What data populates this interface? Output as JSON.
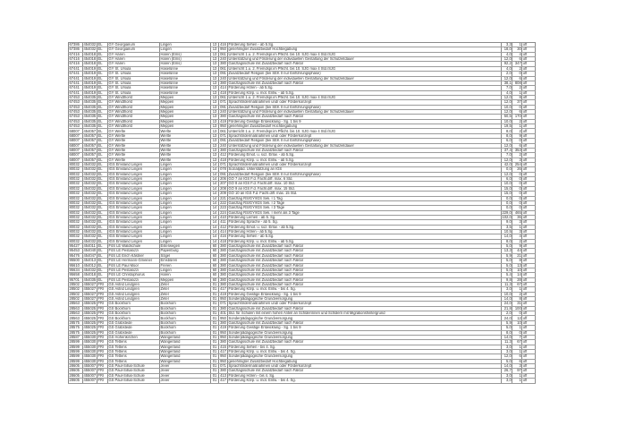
{
  "table": {
    "rows": [
      [
        "67386",
        "454032",
        "EL",
        "GY Georgianum",
        "Lingen",
        "13",
        "416",
        "Förderung Sehen - ab 5.Sg.",
        "3,3",
        "1",
        "off"
      ],
      [
        "67386",
        "454032",
        "EL",
        "GY Georgianum",
        "Lingen",
        "13",
        "950",
        "genehmigter Zusatzbedarf Hochbegabung",
        "18,0",
        "30",
        "off"
      ],
      [
        "67416",
        "454018",
        "EL",
        "GY Haren",
        "Haren (Ems)",
        "13",
        "061",
        "Unterricht 1.u. 2. Fremdspr.im Pflicht. bis 10. SJG max 4 Std./SJG",
        "4,0",
        "4",
        "off"
      ],
      [
        "67416",
        "454018",
        "EL",
        "GY Haren",
        "Haren (Ems)",
        "13",
        "240",
        "Unterstützung und Förderung der individuellen Gestaltung der Schulzeitdauer",
        "12,0",
        "6",
        "off"
      ],
      [
        "67416",
        "454018",
        "EL",
        "GY Haren",
        "Haren (Ems)",
        "13",
        "380",
        "Ganztagsschule mit Zusatzbedarf nach Faktor",
        "92,2",
        "347",
        "off"
      ],
      [
        "67441",
        "454019",
        "EL",
        "GY St. Ursula",
        "Haselünne",
        "13",
        "061",
        "Unterricht 1.u. 2. Fremdspr.im Pflicht. bis 10. SJG max 4 Std./SJG",
        "4,0",
        "2",
        "off"
      ],
      [
        "67441",
        "454019",
        "EL",
        "GY St. Ursula",
        "Haselünne",
        "13",
        "091",
        "Zusatzbedarf Religion (bei SEK II nur Einführungsphase)",
        "2,0",
        "0",
        "off"
      ],
      [
        "67441",
        "454019",
        "EL",
        "GY St. Ursula",
        "Haselünne",
        "13",
        "240",
        "Unterstützung und Förderung der individuellen Gestaltung der Schulzeitdauer",
        "12,0",
        "6",
        "off"
      ],
      [
        "67441",
        "454019",
        "EL",
        "GY St. Ursula",
        "Haselünne",
        "13",
        "380",
        "Ganztagsschule mit Zusatzbedarf nach Faktor",
        "38,1",
        "808",
        "off"
      ],
      [
        "67441",
        "454019",
        "EL",
        "GY St. Ursula",
        "Haselünne",
        "13",
        "414",
        "Förderung Hören - ab 5.Sg.",
        "7,0",
        "2",
        "off"
      ],
      [
        "67441",
        "454019",
        "EL",
        "GY St. Ursula",
        "Haselünne",
        "13",
        "418",
        "Förderung Körp. u. mot. Entw. - ab 5.Sg.",
        "4,0",
        "1",
        "off"
      ],
      [
        "67453",
        "454035",
        "EL",
        "GY Windthorst",
        "Meppen",
        "13",
        "061",
        "Unterricht 1.u. 2. Fremdspr.im Pflicht. bis 10. SJG max 4 Std./SJG",
        "12,0",
        "8",
        "off"
      ],
      [
        "67453",
        "454035",
        "EL",
        "GY Windthorst",
        "Meppen",
        "13",
        "071",
        "Sprachfördermaßnahmen und/ oder Förderkonzept",
        "12,0",
        "37",
        "off"
      ],
      [
        "67453",
        "454035",
        "EL",
        "GY Windthorst",
        "Meppen",
        "13",
        "091",
        "Zusatzbedarf Religion (bei SEK II nur Einführungsphase)",
        "10,0",
        "0",
        "off"
      ],
      [
        "67453",
        "454035",
        "EL",
        "GY Windthorst",
        "Meppen",
        "13",
        "240",
        "Unterstützung und Förderung der individuellen Gestaltung der Schulzeitdauer",
        "12,0",
        "6",
        "off"
      ],
      [
        "67453",
        "454035",
        "EL",
        "GY Windthorst",
        "Meppen",
        "13",
        "380",
        "Ganztagsschule mit Zusatzbedarf nach Faktor",
        "50,5",
        "170",
        "off"
      ],
      [
        "67453",
        "454035",
        "EL",
        "GY Windthorst",
        "Meppen",
        "13",
        "419",
        "Förderung Geistige Entwicklung - Sg. 1 bis 9",
        "10,0",
        "2",
        "off"
      ],
      [
        "67453",
        "454035",
        "EL",
        "GY Windthorst",
        "Meppen",
        "13",
        "950",
        "genehmigter Zusatzbedarf Hochbegabung",
        "19,5",
        "1",
        "off"
      ],
      [
        "68007",
        "454057",
        "EL",
        "GY Werlte",
        "Werlte",
        "13",
        "061",
        "Unterricht 1.u. 2. Fremdspr.im Pflicht. bis 10. SJG max 4 Std./SJG",
        "8,0",
        "2",
        "off"
      ],
      [
        "68007",
        "454057",
        "EL",
        "GY Werlte",
        "Werlte",
        "13",
        "071",
        "Sprachfördermaßnahmen und/ oder Förderkonzept",
        "8,0",
        "9",
        "off"
      ],
      [
        "68007",
        "454057",
        "EL",
        "GY Werlte",
        "Werlte",
        "13",
        "091",
        "Zusatzbedarf Religion (bei SEK II nur Einführungsphase)",
        "6,0",
        "0",
        "off"
      ],
      [
        "68007",
        "454057",
        "EL",
        "GY Werlte",
        "Werlte",
        "13",
        "240",
        "Unterstützung und Förderung der individuellen Gestaltung der Schulzeitdauer",
        "12,0",
        "6",
        "off"
      ],
      [
        "68007",
        "454057",
        "EL",
        "GY Werlte",
        "Werlte",
        "13",
        "380",
        "Ganztagsschule mit Zusatzbedarf nach Faktor",
        "37,4",
        "353",
        "off"
      ],
      [
        "68007",
        "454057",
        "EL",
        "GY Werlte",
        "Werlte",
        "13",
        "412",
        "Förderung Emot. u. soz. Entw. - ab 5.Sg.",
        "7,0",
        "2",
        "off"
      ],
      [
        "68007",
        "454057",
        "EL",
        "GY Werlte",
        "Werlte",
        "13",
        "418",
        "Förderung Körp. u. mot. Entw. - ab 5.Sg.",
        "12,0",
        "3",
        "off"
      ],
      [
        "80032",
        "454032",
        "EL",
        "IGS Emsland Lingen",
        "Lingen",
        "14",
        "071",
        "Sprachfördermaßnahmen und/ oder Förderkonzept",
        "42,0",
        "254",
        "off"
      ],
      [
        "80032",
        "454032",
        "EL",
        "IGS Emsland Lingen",
        "Lingen",
        "14",
        "078",
        "Sozialpäd. Unterstützung an IGS",
        "0,0",
        "26",
        "off"
      ],
      [
        "80032",
        "454032",
        "EL",
        "IGS Emsland Lingen",
        "Lingen",
        "14",
        "091",
        "Zusatzbedarf Religion (bei SEK II nur Einführungsphase)",
        "12,0",
        "0",
        "off"
      ],
      [
        "80032",
        "454032",
        "EL",
        "IGS Emsland Lingen",
        "Lingen",
        "14",
        "206",
        "GO 7 an IGS F.d. Fachl.diff. max. 6 Std.",
        "6,0",
        "0",
        "off"
      ],
      [
        "80032",
        "454032",
        "EL",
        "IGS Emsland Lingen",
        "Lingen",
        "14",
        "207",
        "GO 8 an IGS F.d. Fachl.diff. max. 10 Std.",
        "10,0",
        "0",
        "off"
      ],
      [
        "80032",
        "454032",
        "EL",
        "IGS Emsland Lingen",
        "Lingen",
        "14",
        "208",
        "GO 9 an IGS F.d. Fachl.diff. max. 15 Std.",
        "15,0",
        "0",
        "off"
      ],
      [
        "80032",
        "454032",
        "EL",
        "IGS Emsland Lingen",
        "Lingen",
        "14",
        "209",
        "GO 10 an IGS F.d. Fachl.diff. max. 15 Std.",
        "15,0",
        "0",
        "off"
      ],
      [
        "80032",
        "454032",
        "EL",
        "IGS Emsland Lingen",
        "Lingen",
        "14",
        "221",
        "Ganztag RS/GY/IGS Sek. I 1 Tag",
        "0,0",
        "0",
        "off"
      ],
      [
        "80032",
        "454032",
        "EL",
        "IGS Emsland Lingen",
        "Lingen",
        "14",
        "222",
        "Ganztag RS/GY/IGS Sek. I 2 Tage",
        "0,0",
        "0",
        "off"
      ],
      [
        "80032",
        "454032",
        "EL",
        "IGS Emsland Lingen",
        "Lingen",
        "14",
        "223",
        "Ganztag RS/GY/IGS Sek. I 3 Tage",
        "0,0",
        "0",
        "off"
      ],
      [
        "80032",
        "454032",
        "EL",
        "IGS Emsland Lingen",
        "Lingen",
        "14",
        "224",
        "Ganztag RS/GY/IGS Sek. I mehr als 3 Tage",
        "229,0",
        "465",
        "off"
      ],
      [
        "80032",
        "454032",
        "EL",
        "IGS Emsland Lingen",
        "Lingen",
        "14",
        "410",
        "Förderung Lernen - ab 5. Sg.",
        "102,0",
        "36",
        "off"
      ],
      [
        "80032",
        "454032",
        "EL",
        "IGS Emsland Lingen",
        "Lingen",
        "14",
        "411",
        "Förderung Sprache - ab 5. Sg.",
        "9,0",
        "3",
        "off"
      ],
      [
        "80032",
        "454032",
        "EL",
        "IGS Emsland Lingen",
        "Lingen",
        "14",
        "412",
        "Förderung Emot. u. soz. Entw. - ab 5.Sg.",
        "3,5",
        "1",
        "off"
      ],
      [
        "80032",
        "454032",
        "EL",
        "IGS Emsland Lingen",
        "Lingen",
        "14",
        "414",
        "Förderung Hören - ab 5.Sg.",
        "10,5",
        "3",
        "off"
      ],
      [
        "80032",
        "454032",
        "EL",
        "IGS Emsland Lingen",
        "Lingen",
        "14",
        "416",
        "Förderung Sehen - ab 5.Sg.",
        "14,0",
        "4",
        "off"
      ],
      [
        "80032",
        "454032",
        "EL",
        "IGS Emsland Lingen",
        "Lingen",
        "14",
        "418",
        "Förderung Körp. u. mot. Entw. - ab 5.Sg.",
        "8,0",
        "2",
        "off"
      ],
      [
        "95427",
        "454011",
        "EL",
        "FöS LE Waldschule",
        "Esterwegen",
        "60",
        "380",
        "Ganztagsschule mit Zusatzbedarf nach Faktor",
        "5,0",
        "9",
        "off"
      ],
      [
        "95453",
        "454040",
        "EL",
        "FöS LE Pestalozzi",
        "Papenburg",
        "60",
        "380",
        "Ganztagsschule mit Zusatzbedarf nach Faktor",
        "13,3",
        "44",
        "off"
      ],
      [
        "95476",
        "454047",
        "EL",
        "FöS LE Erich Kästner",
        "Sögel",
        "60",
        "380",
        "Ganztagsschule mit Zusatzbedarf nach Faktor",
        "5,9",
        "21",
        "off"
      ],
      [
        "95500",
        "454013",
        "EL",
        "FöS LE Hermann-Gmeiner",
        "Emsbüren",
        "60",
        "380",
        "Ganztagsschule mit Zusatzbedarf nach Faktor",
        "5,0",
        "8",
        "off"
      ],
      [
        "95610",
        "454012",
        "EL",
        "FöS LE Paul Moor",
        "Freren",
        "60",
        "380",
        "Ganztagsschule mit Zusatzbedarf nach Faktor",
        "5,0",
        "13",
        "off"
      ],
      [
        "95634",
        "454032",
        "EL",
        "FöS LE Pestalozzi",
        "Lingen",
        "60",
        "380",
        "Ganztagsschule mit Zusatzbedarf nach Faktor",
        "5,0",
        "10",
        "off"
      ],
      [
        "95658",
        "454018",
        "EL",
        "FöS LE Christophorus",
        "Haren",
        "60",
        "380",
        "Ganztagsschule mit Zusatzbedarf nach Faktor",
        "5,4",
        "14",
        "off"
      ],
      [
        "95701",
        "454035",
        "EL",
        "FöS LE Pestalozzi",
        "Meppen",
        "60",
        "380",
        "Ganztagsschule mit Zusatzbedarf nach Faktor",
        "9,8",
        "28",
        "off"
      ],
      [
        "28502",
        "455027",
        "FRI",
        "GS Astrid Lindgren",
        "Zetel",
        "01",
        "380",
        "Ganztagsschule mit Zusatzbedarf nach Faktor",
        "11,3",
        "67",
        "off"
      ],
      [
        "28502",
        "455027",
        "FRI",
        "GS Astrid Lindgren",
        "Zetel",
        "01",
        "417",
        "Förderung Körp. u. mot. Entw. - bis 4. Sg.",
        "3,0",
        "1",
        "off"
      ],
      [
        "28502",
        "455027",
        "FRI",
        "GS Astrid Lindgren",
        "Zetel",
        "01",
        "419",
        "Förderung Geistige Entwicklung - Sg. 1 bis 9",
        "10,0",
        "2",
        "off"
      ],
      [
        "28502",
        "455027",
        "FRI",
        "GS Astrid Lindgren",
        "Zetel",
        "01",
        "950",
        "Sonderpädagogische Grundversorgung",
        "14,0",
        "8",
        "off"
      ],
      [
        "28563",
        "455025",
        "FRI",
        "GS Bockhorn",
        "Bockhorn",
        "01",
        "071",
        "Sprachfördermaßnahmen und/ oder Förderkonzept",
        "24,0",
        "31",
        "off"
      ],
      [
        "28563",
        "455025",
        "FRI",
        "GS Bockhorn",
        "Bockhorn",
        "01",
        "380",
        "Ganztagsschule mit Zusatzbedarf nach Faktor",
        "21,8",
        "100",
        "off"
      ],
      [
        "28563",
        "455025",
        "FRI",
        "GS Bockhorn",
        "Bockhorn",
        "01",
        "401",
        "Std. für Schulen mit einem hohen Anteil an Schülerinnen und Schülern mit Migrationshintergrund",
        "2,0",
        "0",
        "off"
      ],
      [
        "28563",
        "455025",
        "FRI",
        "GS Bockhorn",
        "Bockhorn",
        "01",
        "950",
        "Sonderpädagogische Grundversorgung",
        "24,0",
        "12",
        "off"
      ],
      [
        "28575",
        "455025",
        "FRI",
        "GS Grabstede",
        "Bockhorn",
        "01",
        "380",
        "Ganztagsschule mit Zusatzbedarf nach Faktor",
        "5,9",
        "10",
        "off"
      ],
      [
        "28575",
        "455025",
        "FRI",
        "GS Grabstede",
        "Bockhorn",
        "01",
        "419",
        "Förderung Geistige Entwicklung - Sg. 1 bis 9",
        "5,0",
        "1",
        "off"
      ],
      [
        "28575",
        "455025",
        "FRI",
        "GS Grabstede",
        "Bockhorn",
        "01",
        "950",
        "Sonderpädagogische Grundversorgung",
        "8,0",
        "0",
        "off"
      ],
      [
        "28587",
        "455030",
        "FRI",
        "GS Hohenkirchen",
        "Wangerland",
        "01",
        "950",
        "Sonderpädagogische Grundversorgung",
        "14,0",
        "7",
        "off"
      ],
      [
        "28599",
        "455030",
        "FRI",
        "GS Tettens",
        "Wangerland",
        "01",
        "380",
        "Ganztagsschule mit Zusatzbedarf nach Faktor",
        "11,3",
        "67",
        "off"
      ],
      [
        "28599",
        "455030",
        "FRI",
        "GS Tettens",
        "Wangerland",
        "01",
        "415",
        "Förderung Sehen - bis 4. Sg.",
        "3,0",
        "1",
        "off"
      ],
      [
        "28599",
        "455030",
        "FRI",
        "GS Tettens",
        "Wangerland",
        "01",
        "417",
        "Förderung Körp. u. mot. Entw. - bis 4. Sg.",
        "3,0",
        "1",
        "off"
      ],
      [
        "28599",
        "455030",
        "FRI",
        "GS Tettens",
        "Wangerland",
        "01",
        "950",
        "Sonderpädagogische Grundversorgung",
        "12,0",
        "6",
        "off"
      ],
      [
        "28599",
        "455030",
        "FRI",
        "GS Tettens",
        "Wangerland",
        "01",
        "950",
        "genehmigter Zusatzbedarf Hochbegabung",
        "5,0",
        "6",
        "off"
      ],
      [
        "28605",
        "455007",
        "FRI",
        "GS Paul-Sillus-Schule",
        "Jever",
        "01",
        "071",
        "Sprachfördermaßnahmen und/ oder Förderkonzept",
        "14,0",
        "3",
        "off"
      ],
      [
        "28605",
        "455007",
        "FRI",
        "GS Paul-Sillus-Schule",
        "Jever",
        "01",
        "380",
        "Ganztagsschule mit Zusatzbedarf nach Faktor",
        "26,7",
        "97",
        "off"
      ],
      [
        "28605",
        "455007",
        "FRI",
        "GS Paul-Sillus-Schule",
        "Jever",
        "01",
        "413",
        "Förderung Hören - bis 4. Sg.",
        "3,0",
        "1",
        "off"
      ],
      [
        "28605",
        "455007",
        "FRI",
        "GS Paul-Sillus-Schule",
        "Jever",
        "01",
        "417",
        "Förderung Körp. u. mot. Entw. - bis 4. Sg.",
        "3,0",
        "1",
        "off"
      ]
    ]
  }
}
